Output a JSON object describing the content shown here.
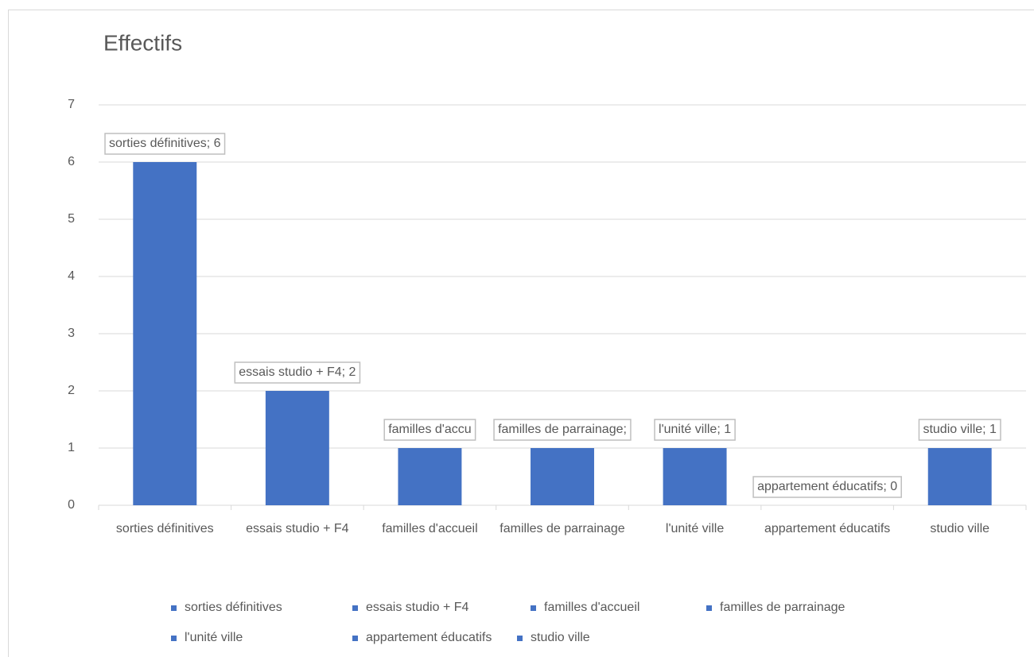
{
  "chart_data": {
    "type": "bar",
    "title": "Effectifs",
    "categories": [
      "sorties définitives",
      "essais studio + F4",
      "familles d'accueil",
      "familles de parrainage",
      "l'unité ville",
      "appartement éducatifs",
      "studio ville"
    ],
    "values": [
      6,
      2,
      1,
      1,
      1,
      0,
      1
    ],
    "value_labels": [
      "sorties définitives; 6",
      "essais studio + F4; 2",
      "familles d'accu",
      "familles de parrainage;",
      "l'unité ville; 1",
      "appartement éducatifs; 0",
      "studio ville; 1"
    ],
    "color": "#4472c4",
    "ylim": [
      0,
      7
    ],
    "yticks": [
      0,
      1,
      2,
      3,
      4,
      5,
      6,
      7
    ],
    "grid": true,
    "legend": "bottom"
  }
}
